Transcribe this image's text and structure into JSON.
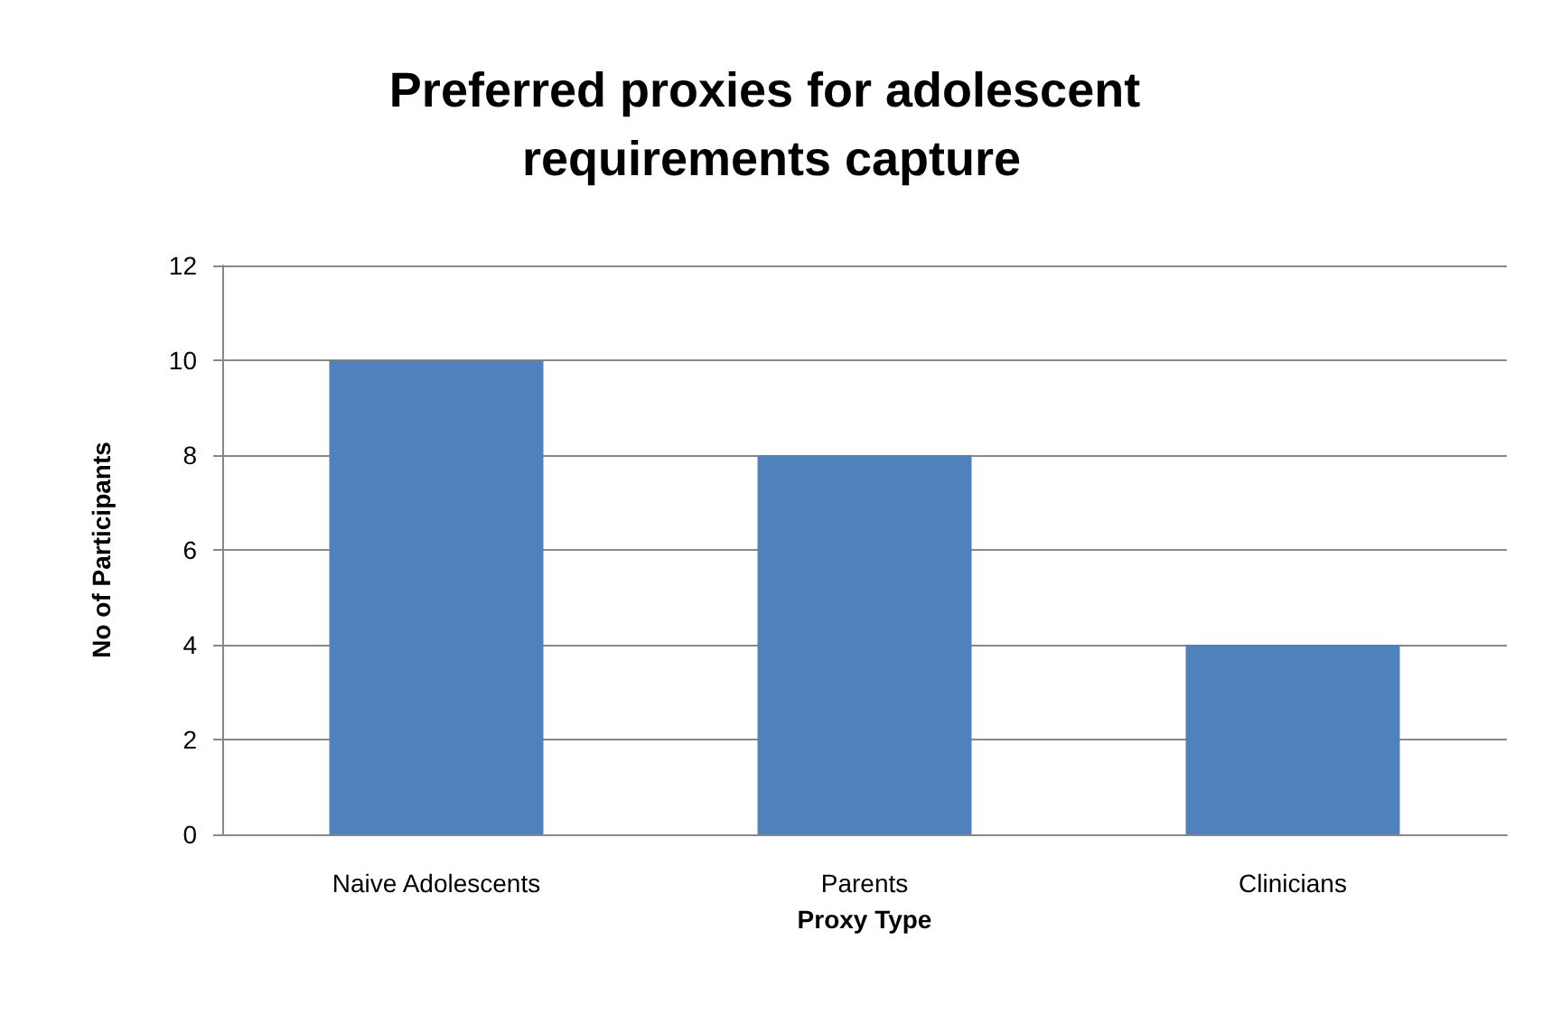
{
  "chart_data": {
    "type": "bar",
    "title": "Preferred proxies for adolescent requirements capture",
    "xlabel": "Proxy Type",
    "ylabel": "No of Participants",
    "categories": [
      "Naive Adolescents",
      "Parents",
      "Clinicians"
    ],
    "values": [
      10,
      8,
      4
    ],
    "color": "#4f81bd",
    "ylim": [
      0,
      12
    ],
    "yticks": [
      0,
      2,
      4,
      6,
      8,
      10,
      12
    ],
    "grid": "y"
  }
}
